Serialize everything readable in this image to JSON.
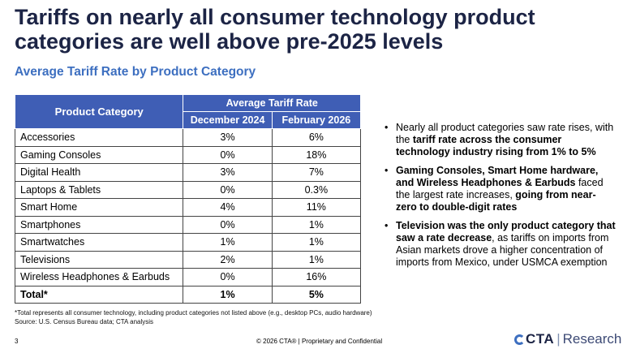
{
  "title": "Tariffs on nearly all consumer technology product categories are well above pre-2025 levels",
  "subtitle": "Average Tariff Rate by Product Category",
  "table": {
    "header_category": "Product Category",
    "header_group": "Average Tariff Rate",
    "header_col1": "December 2024",
    "header_col2": "February 2026",
    "rows": [
      {
        "category": "Accessories",
        "dec2024": "3%",
        "feb2026": "6%"
      },
      {
        "category": "Gaming Consoles",
        "dec2024": "0%",
        "feb2026": "18%"
      },
      {
        "category": "Digital Health",
        "dec2024": "3%",
        "feb2026": "7%"
      },
      {
        "category": "Laptops & Tablets",
        "dec2024": "0%",
        "feb2026": "0.3%"
      },
      {
        "category": "Smart Home",
        "dec2024": "4%",
        "feb2026": "11%"
      },
      {
        "category": "Smartphones",
        "dec2024": "0%",
        "feb2026": "1%"
      },
      {
        "category": "Smartwatches",
        "dec2024": "1%",
        "feb2026": "1%"
      },
      {
        "category": "Televisions",
        "dec2024": "2%",
        "feb2026": "1%"
      },
      {
        "category": "Wireless Headphones & Earbuds",
        "dec2024": "0%",
        "feb2026": "16%"
      }
    ],
    "total": {
      "category": "Total*",
      "dec2024": "1%",
      "feb2026": "5%"
    }
  },
  "bullets": [
    {
      "parts": [
        {
          "text": "Nearly all product categories saw rate rises, with the ",
          "bold": false
        },
        {
          "text": "tariff rate across the consumer technology industry rising from 1% to 5%",
          "bold": true
        }
      ]
    },
    {
      "parts": [
        {
          "text": "Gaming Consoles, Smart Home hardware, and Wireless Headphones & Earbuds",
          "bold": true
        },
        {
          "text": " faced the largest rate increases, ",
          "bold": false
        },
        {
          "text": "going from near-zero to double-digit rates",
          "bold": true
        }
      ]
    },
    {
      "parts": [
        {
          "text": "Television was the only product category that saw a rate decrease",
          "bold": true
        },
        {
          "text": ", as tariffs on imports from Asian markets drove a higher concentration of imports from Mexico, under USMCA exemption",
          "bold": false
        }
      ]
    }
  ],
  "footnote_line1": "*Total represents all consumer technology, including product categories not listed above (e.g., desktop PCs, audio hardware)",
  "footnote_line2": "Source: U.S. Census Bureau data; CTA analysis",
  "page_number": "3",
  "copyright": "© 2026 CTA® | Proprietary and Confidential",
  "logo": {
    "brand": "CTA",
    "separator": "|",
    "suffix": "Research"
  }
}
